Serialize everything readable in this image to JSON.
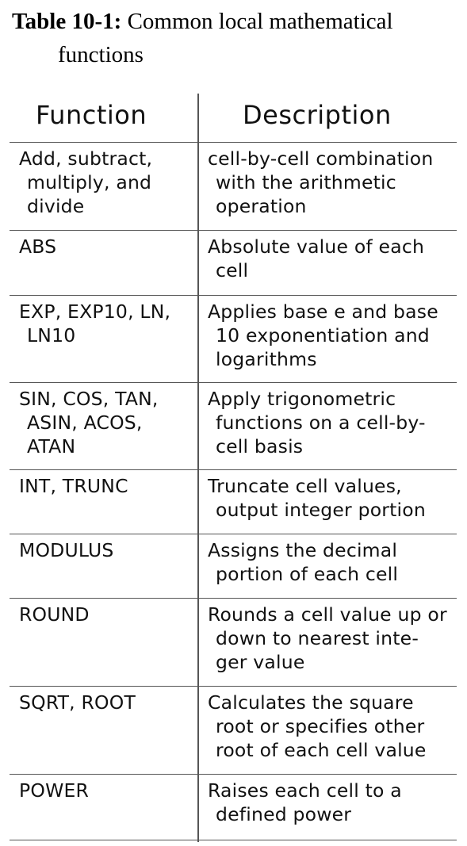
{
  "caption": {
    "label": "Table 10-1:",
    "text_line1": " Common local mathematical",
    "text_line2": "functions"
  },
  "table": {
    "headers": {
      "function": "Function",
      "description": "Description"
    },
    "rows": [
      {
        "function": [
          "Add, subtract,",
          "multiply, and",
          "divide"
        ],
        "description": [
          "cell-by-cell combination",
          "with the arithmetic",
          "operation"
        ]
      },
      {
        "function": [
          "ABS"
        ],
        "description": [
          "Absolute value of each",
          "cell"
        ]
      },
      {
        "function": [
          "EXP, EXP10, LN,",
          "LN10"
        ],
        "description": [
          "Applies base e and base",
          "10 exponentiation and",
          "logarithms"
        ]
      },
      {
        "function": [
          "SIN, COS, TAN,",
          "ASIN, ACOS,",
          "ATAN"
        ],
        "description": [
          "Apply trigonometric",
          "functions on a cell-by-",
          "cell basis"
        ]
      },
      {
        "function": [
          "INT, TRUNC"
        ],
        "description": [
          "Truncate cell values,",
          "output integer portion"
        ]
      },
      {
        "function": [
          "MODULUS"
        ],
        "description": [
          "Assigns the decimal",
          "portion of each cell"
        ]
      },
      {
        "function": [
          "ROUND"
        ],
        "description": [
          "Rounds a cell value up or",
          "down to nearest inte-",
          "ger value"
        ]
      },
      {
        "function": [
          "SQRT, ROOT"
        ],
        "description": [
          "Calculates the square",
          "root or specifies other",
          "root of each cell value"
        ]
      },
      {
        "function": [
          "POWER"
        ],
        "description": [
          "Raises each cell to a",
          "defined power"
        ]
      }
    ]
  }
}
